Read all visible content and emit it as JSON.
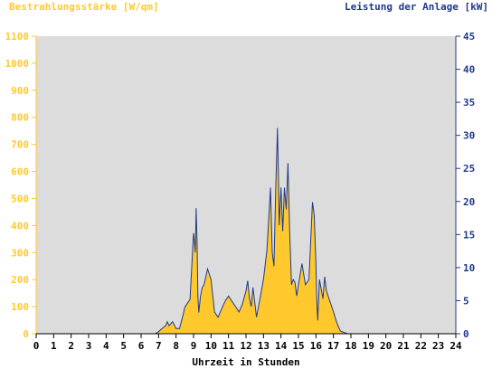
{
  "chart_data": {
    "type": "area",
    "title": "",
    "left_axis_label": "Bestrahlungsstärke [W/qm]",
    "right_axis_label": "Leistung der Anlage [kW]",
    "xlabel": "Uhrzeit in Stunden",
    "xlim": [
      0,
      24
    ],
    "ylim_left": [
      0,
      1100
    ],
    "ylim_right": [
      0,
      45
    ],
    "x_ticks": [
      "0",
      "1",
      "2",
      "3",
      "4",
      "5",
      "6",
      "7",
      "8",
      "9",
      "10",
      "11",
      "12",
      "13",
      "14",
      "15",
      "16",
      "17",
      "18",
      "19",
      "20",
      "21",
      "22",
      "23",
      "24"
    ],
    "y_left_ticks": [
      "0",
      "100",
      "200",
      "300",
      "400",
      "500",
      "600",
      "700",
      "800",
      "900",
      "1000",
      "1100"
    ],
    "y_right_ticks": [
      "0",
      "5",
      "10",
      "15",
      "20",
      "25",
      "30",
      "35",
      "40",
      "45"
    ],
    "grid": false,
    "series": [
      {
        "axis": "left",
        "color": "#FFC92E",
        "x": [
          0,
          6.8,
          7.0,
          7.2,
          7.4,
          7.5,
          7.6,
          7.8,
          8.0,
          8.2,
          8.4,
          8.5,
          8.6,
          8.8,
          9.0,
          9.05,
          9.1,
          9.15,
          9.2,
          9.25,
          9.3,
          9.4,
          9.5,
          9.6,
          9.8,
          10.0,
          10.1,
          10.2,
          10.4,
          10.6,
          10.8,
          11.0,
          11.2,
          11.4,
          11.6,
          11.8,
          12.0,
          12.1,
          12.2,
          12.3,
          12.4,
          12.6,
          12.8,
          13.0,
          13.2,
          13.4,
          13.5,
          13.6,
          13.7,
          13.8,
          13.85,
          13.9,
          14.0,
          14.1,
          14.2,
          14.3,
          14.4,
          14.5,
          14.6,
          14.7,
          14.8,
          14.9,
          15.0,
          15.2,
          15.4,
          15.6,
          15.8,
          15.9,
          16.0,
          16.05,
          16.1,
          16.2,
          16.4,
          16.5,
          16.6,
          16.8,
          17.0,
          17.2,
          17.4,
          17.6,
          17.8,
          18.0,
          18.2,
          24
        ],
        "values": [
          0,
          0,
          10,
          20,
          30,
          45,
          30,
          45,
          20,
          20,
          70,
          100,
          110,
          130,
          350,
          380,
          300,
          410,
          340,
          140,
          80,
          140,
          170,
          180,
          230,
          200,
          140,
          80,
          60,
          90,
          120,
          140,
          120,
          100,
          80,
          110,
          160,
          200,
          130,
          100,
          170,
          60,
          130,
          200,
          310,
          540,
          300,
          250,
          540,
          810,
          600,
          400,
          540,
          380,
          540,
          460,
          650,
          380,
          180,
          200,
          190,
          140,
          180,
          260,
          180,
          200,
          480,
          440,
          260,
          120,
          50,
          200,
          130,
          210,
          160,
          120,
          80,
          40,
          10,
          5,
          0,
          0,
          0,
          0
        ]
      },
      {
        "axis": "right",
        "color": "#1F3A8A",
        "x": [
          0,
          6.8,
          7.0,
          7.2,
          7.4,
          7.5,
          7.6,
          7.8,
          8.0,
          8.2,
          8.4,
          8.5,
          8.6,
          8.8,
          9.0,
          9.05,
          9.1,
          9.15,
          9.2,
          9.25,
          9.3,
          9.4,
          9.5,
          9.6,
          9.8,
          10.0,
          10.1,
          10.2,
          10.4,
          10.6,
          10.8,
          11.0,
          11.2,
          11.4,
          11.6,
          11.8,
          12.0,
          12.1,
          12.2,
          12.3,
          12.4,
          12.6,
          12.8,
          13.0,
          13.2,
          13.4,
          13.5,
          13.6,
          13.7,
          13.8,
          13.85,
          13.9,
          14.0,
          14.1,
          14.2,
          14.3,
          14.4,
          14.5,
          14.6,
          14.7,
          14.8,
          14.9,
          15.0,
          15.2,
          15.4,
          15.6,
          15.8,
          15.9,
          16.0,
          16.05,
          16.1,
          16.2,
          16.4,
          16.5,
          16.6,
          16.8,
          17.0,
          17.2,
          17.4,
          17.6,
          17.8,
          18.0,
          18.2,
          24
        ],
        "values": [
          0,
          0,
          0.3,
          0.8,
          1.2,
          1.8,
          1.2,
          1.8,
          0.8,
          0.8,
          2.8,
          4.0,
          4.4,
          5.2,
          15.2,
          14.0,
          12.3,
          19.0,
          13.9,
          5.7,
          3.2,
          5.7,
          7.0,
          7.4,
          9.8,
          8.2,
          5.7,
          3.3,
          2.5,
          3.7,
          4.9,
          5.7,
          4.9,
          4.1,
          3.3,
          4.5,
          6.5,
          8.0,
          5.3,
          4.1,
          7.0,
          2.5,
          5.3,
          8.2,
          12.7,
          22.1,
          12.3,
          10.2,
          22.1,
          31.1,
          24.5,
          16.4,
          22.1,
          15.5,
          22.1,
          18.8,
          25.8,
          15.5,
          7.4,
          8.2,
          7.8,
          5.7,
          7.4,
          10.6,
          7.4,
          8.2,
          19.9,
          18.0,
          10.6,
          4.9,
          2.0,
          8.2,
          5.3,
          8.6,
          6.5,
          4.9,
          3.3,
          1.6,
          0.4,
          0.2,
          0,
          0,
          0,
          0
        ]
      }
    ]
  },
  "colors": {
    "plot_background": "#DCDCDC",
    "left_axis": "#FFC92E",
    "right_axis": "#1F3A8A",
    "x_axis": "#000000"
  }
}
